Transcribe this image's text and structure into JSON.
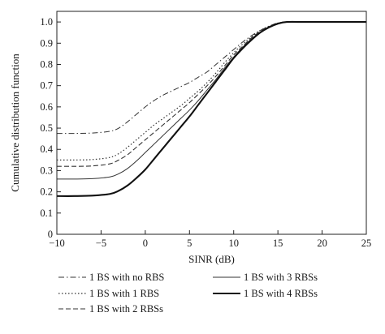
{
  "chart_data": {
    "type": "line",
    "title": "",
    "xlabel": "SINR (dB)",
    "ylabel": "Cumulative distribution function",
    "xlim": [
      -10,
      25
    ],
    "ylim": [
      0,
      1.05
    ],
    "xticks": [
      -10,
      -5,
      0,
      5,
      10,
      15,
      20,
      25
    ],
    "yticks": [
      0,
      0.1,
      0.2,
      0.3,
      0.4,
      0.5,
      0.6,
      0.7,
      0.8,
      0.9,
      1.0
    ],
    "xtick_labels": [
      "−10",
      "−5",
      "0",
      "5",
      "10",
      "15",
      "20",
      "25"
    ],
    "ytick_labels": [
      "0",
      "0.1",
      "0.2",
      "0.3",
      "0.4",
      "0.5",
      "0.6",
      "0.7",
      "0.8",
      "0.9",
      "1.0"
    ],
    "grid": false,
    "legend_position": "below",
    "series": [
      {
        "name": "1 BS with no RBS",
        "line_style": "dash-dot",
        "color": "#333333",
        "x": [
          -10,
          -8,
          -6,
          -4,
          -3,
          -2,
          -1,
          0,
          1,
          2,
          3,
          4,
          5,
          6,
          7,
          8,
          9,
          10,
          11,
          12,
          13,
          14,
          15,
          16,
          18,
          20,
          25
        ],
        "y": [
          0.475,
          0.475,
          0.477,
          0.485,
          0.5,
          0.53,
          0.565,
          0.6,
          0.63,
          0.655,
          0.675,
          0.695,
          0.715,
          0.74,
          0.765,
          0.8,
          0.835,
          0.87,
          0.905,
          0.935,
          0.96,
          0.98,
          0.995,
          1.0,
          1.0,
          1.0,
          1.0
        ]
      },
      {
        "name": "1 BS with 1 RBS",
        "line_style": "dotted",
        "color": "#333333",
        "x": [
          -10,
          -8,
          -6,
          -4,
          -3,
          -2,
          -1,
          0,
          1,
          2,
          3,
          4,
          5,
          6,
          7,
          8,
          9,
          10,
          11,
          12,
          13,
          14,
          15,
          16,
          18,
          20,
          25
        ],
        "y": [
          0.35,
          0.35,
          0.352,
          0.362,
          0.38,
          0.41,
          0.445,
          0.48,
          0.515,
          0.545,
          0.575,
          0.605,
          0.64,
          0.675,
          0.715,
          0.76,
          0.81,
          0.855,
          0.895,
          0.93,
          0.96,
          0.98,
          0.995,
          1.0,
          1.0,
          1.0,
          1.0
        ]
      },
      {
        "name": "1 BS with 2 RBSs",
        "line_style": "dashed",
        "color": "#333333",
        "x": [
          -10,
          -8,
          -6,
          -4,
          -3,
          -2,
          -1,
          0,
          1,
          2,
          3,
          4,
          5,
          6,
          7,
          8,
          9,
          10,
          11,
          12,
          13,
          14,
          15,
          16,
          18,
          20,
          25
        ],
        "y": [
          0.32,
          0.32,
          0.322,
          0.332,
          0.35,
          0.375,
          0.41,
          0.445,
          0.48,
          0.515,
          0.55,
          0.585,
          0.62,
          0.66,
          0.7,
          0.745,
          0.795,
          0.845,
          0.885,
          0.925,
          0.955,
          0.978,
          0.993,
          1.0,
          1.0,
          1.0,
          1.0
        ]
      },
      {
        "name": "1 BS with 3 RBSs",
        "line_style": "solid-thin",
        "color": "#333333",
        "x": [
          -10,
          -8,
          -6,
          -4,
          -3,
          -2,
          -1,
          0,
          1,
          2,
          3,
          4,
          5,
          6,
          7,
          8,
          9,
          10,
          11,
          12,
          13,
          14,
          15,
          16,
          18,
          20,
          25
        ],
        "y": [
          0.26,
          0.26,
          0.262,
          0.27,
          0.285,
          0.31,
          0.345,
          0.385,
          0.425,
          0.465,
          0.505,
          0.545,
          0.585,
          0.63,
          0.68,
          0.73,
          0.785,
          0.835,
          0.88,
          0.92,
          0.952,
          0.976,
          0.992,
          1.0,
          1.0,
          1.0,
          1.0
        ]
      },
      {
        "name": "1 BS with 4 RBSs",
        "line_style": "solid-thick",
        "color": "#111111",
        "x": [
          -10,
          -8,
          -6,
          -4,
          -3,
          -2,
          -1,
          0,
          1,
          2,
          3,
          4,
          5,
          6,
          7,
          8,
          9,
          10,
          11,
          12,
          13,
          14,
          15,
          16,
          18,
          20,
          25
        ],
        "y": [
          0.18,
          0.18,
          0.182,
          0.19,
          0.205,
          0.23,
          0.265,
          0.305,
          0.355,
          0.405,
          0.455,
          0.505,
          0.555,
          0.61,
          0.665,
          0.72,
          0.775,
          0.83,
          0.875,
          0.915,
          0.95,
          0.975,
          0.992,
          1.0,
          1.0,
          1.0,
          1.0
        ]
      }
    ]
  }
}
